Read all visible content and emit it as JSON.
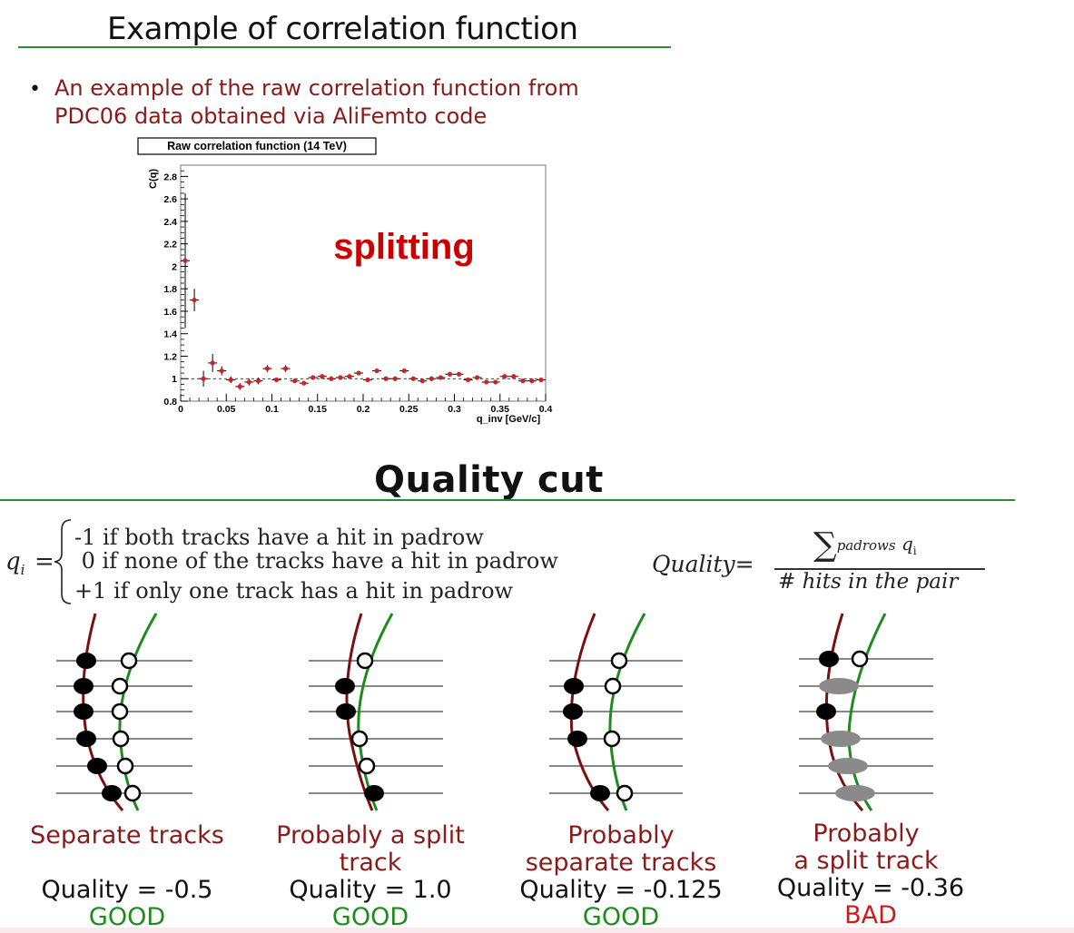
{
  "slide1": {
    "title": "Example of correlation function",
    "bullet": "An example of the raw correlation function from PDC06 data obtained via AliFemto code",
    "bullet_line1": "An example of the raw correlation function from",
    "bullet_line2": "PDC06 data obtained via AliFemto code"
  },
  "chart_data": {
    "type": "scatter",
    "title": "Raw correlation function (14 TeV)",
    "xlabel": "q_inv [GeV/c]",
    "ylabel": "C(q)",
    "xlim": [
      0,
      0.4
    ],
    "ylim": [
      0.8,
      2.9
    ],
    "x_ticks": [
      "0",
      "0.05",
      "0.1",
      "0.15",
      "0.2",
      "0.25",
      "0.3",
      "0.35",
      "0.4"
    ],
    "y_ticks": [
      "0.8",
      "1",
      "1.2",
      "1.4",
      "1.6",
      "1.8",
      "2",
      "2.2",
      "2.4",
      "2.6",
      "2.8"
    ],
    "annotation": "splitting",
    "reference_line": 1.0,
    "points": [
      {
        "x": 0.005,
        "y": 2.05,
        "err": 0.6
      },
      {
        "x": 0.015,
        "y": 1.7,
        "err": 0.1
      },
      {
        "x": 0.025,
        "y": 1.0,
        "err": 0.07
      },
      {
        "x": 0.035,
        "y": 1.14,
        "err": 0.08
      },
      {
        "x": 0.045,
        "y": 1.07,
        "err": 0.04
      },
      {
        "x": 0.055,
        "y": 0.99,
        "err": 0.03
      },
      {
        "x": 0.065,
        "y": 0.93,
        "err": 0.03
      },
      {
        "x": 0.075,
        "y": 0.97,
        "err": 0.03
      },
      {
        "x": 0.085,
        "y": 0.98,
        "err": 0.03
      },
      {
        "x": 0.095,
        "y": 1.09,
        "err": 0.03
      },
      {
        "x": 0.105,
        "y": 0.99,
        "err": 0.02
      },
      {
        "x": 0.115,
        "y": 1.09,
        "err": 0.03
      },
      {
        "x": 0.125,
        "y": 0.98,
        "err": 0.02
      },
      {
        "x": 0.135,
        "y": 0.96,
        "err": 0.02
      },
      {
        "x": 0.145,
        "y": 1.01,
        "err": 0.02
      },
      {
        "x": 0.155,
        "y": 1.02,
        "err": 0.02
      },
      {
        "x": 0.165,
        "y": 1.0,
        "err": 0.02
      },
      {
        "x": 0.175,
        "y": 1.01,
        "err": 0.02
      },
      {
        "x": 0.185,
        "y": 1.02,
        "err": 0.02
      },
      {
        "x": 0.195,
        "y": 1.05,
        "err": 0.02
      },
      {
        "x": 0.205,
        "y": 0.99,
        "err": 0.02
      },
      {
        "x": 0.215,
        "y": 1.07,
        "err": 0.02
      },
      {
        "x": 0.225,
        "y": 1.0,
        "err": 0.02
      },
      {
        "x": 0.235,
        "y": 1.0,
        "err": 0.02
      },
      {
        "x": 0.245,
        "y": 1.07,
        "err": 0.02
      },
      {
        "x": 0.255,
        "y": 1.0,
        "err": 0.02
      },
      {
        "x": 0.265,
        "y": 0.98,
        "err": 0.02
      },
      {
        "x": 0.275,
        "y": 1.0,
        "err": 0.02
      },
      {
        "x": 0.285,
        "y": 1.01,
        "err": 0.02
      },
      {
        "x": 0.295,
        "y": 1.04,
        "err": 0.02
      },
      {
        "x": 0.305,
        "y": 1.04,
        "err": 0.02
      },
      {
        "x": 0.315,
        "y": 0.99,
        "err": 0.02
      },
      {
        "x": 0.325,
        "y": 1.01,
        "err": 0.02
      },
      {
        "x": 0.335,
        "y": 0.97,
        "err": 0.02
      },
      {
        "x": 0.345,
        "y": 0.97,
        "err": 0.02
      },
      {
        "x": 0.355,
        "y": 1.02,
        "err": 0.02
      },
      {
        "x": 0.365,
        "y": 1.02,
        "err": 0.02
      },
      {
        "x": 0.375,
        "y": 0.98,
        "err": 0.02
      },
      {
        "x": 0.385,
        "y": 0.98,
        "err": 0.02
      },
      {
        "x": 0.395,
        "y": 0.99,
        "err": 0.02
      }
    ]
  },
  "slide2": {
    "title": "Quality cut",
    "qi_symbol": "q",
    "qi_sub": "i",
    "eq": "=",
    "cases": [
      "-1 if both tracks have a hit in padrow",
      " 0 if none of the tracks have a hit in padrow",
      "+1 if only one track has a hit in padrow"
    ],
    "quality_lhs": "Quality=",
    "frac_sum": "∑",
    "frac_sum_sub": "padrows",
    "frac_num_var": "q",
    "frac_num_sub": "i",
    "frac_den": "# hits in the  pair",
    "panels": [
      {
        "caption_lines": [
          "Separate tracks"
        ],
        "quality": "Quality = -0.5",
        "verdict": "GOOD",
        "verdict_class": "good"
      },
      {
        "caption_lines": [
          "Probably a split",
          "track"
        ],
        "quality": "Quality = 1.0",
        "verdict": "GOOD",
        "verdict_class": "good"
      },
      {
        "caption_lines": [
          "Probably",
          "separate tracks"
        ],
        "quality": "Quality = -0.125",
        "verdict": "GOOD",
        "verdict_class": "good"
      },
      {
        "caption_lines": [
          "Probably",
          "a split track"
        ],
        "quality": "Quality = -0.36",
        "verdict": "BAD",
        "verdict_class": "bad"
      }
    ]
  },
  "colors": {
    "rule_green": "#2e8b2e",
    "bullet_red": "#8b1a1a",
    "data_red": "#d42020",
    "splitting_red": "#cc0000",
    "track_dark_red": "#7a1010",
    "track_green": "#1e8b1e",
    "good_green": "#1e8b1e",
    "bad_red": "#cc1a1a",
    "hit_gray": "#8a8a8a"
  }
}
